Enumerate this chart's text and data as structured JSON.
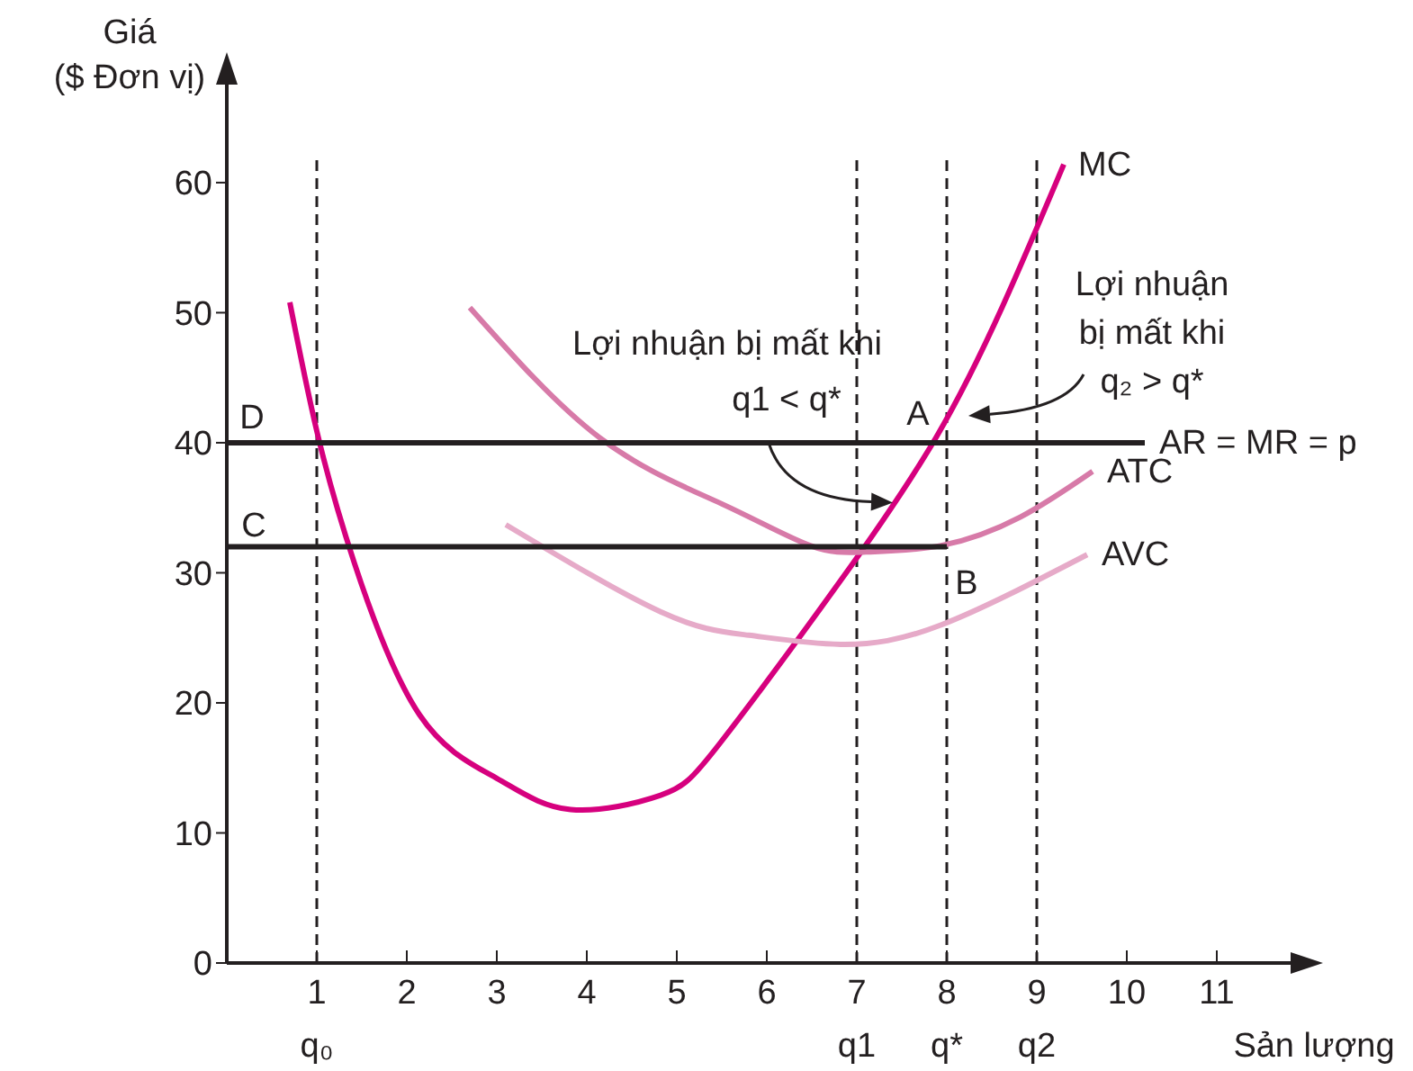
{
  "chart_data": {
    "type": "line",
    "ylabel": "Giá\n($ Đơn vị)",
    "xlabel": "Sản lượng",
    "xlim": [
      0,
      11.5
    ],
    "ylim": [
      0,
      62
    ],
    "xticks": [
      1,
      2,
      3,
      4,
      5,
      6,
      7,
      8,
      9,
      10,
      11
    ],
    "yticks": [
      0,
      10,
      20,
      30,
      40,
      50,
      60
    ],
    "grid": false,
    "marker": "none",
    "series": [
      {
        "name": "MC",
        "color": "#d6007e",
        "x": [
          0.7,
          1,
          1.42,
          2.14,
          3,
          3.82,
          4.82,
          5.48,
          6.82,
          7.88,
          8.62,
          9.3
        ],
        "values": [
          50.8,
          40.9,
          30.7,
          19.1,
          14.2,
          11.8,
          12.9,
          16.9,
          29.4,
          40.4,
          50.5,
          61.4
        ]
      },
      {
        "name": "ATC",
        "color": "#d77aa8",
        "x": [
          2.7,
          4.14,
          5.5,
          6.48,
          7.1,
          7.94,
          8.82,
          9.62
        ],
        "values": [
          50.4,
          40.4,
          35.3,
          32.1,
          31.6,
          32.1,
          34.3,
          37.8
        ]
      },
      {
        "name": "AVC",
        "color": "#e6aac8",
        "x": [
          3.1,
          4.82,
          5.8,
          6.82,
          7.94,
          9.56
        ],
        "values": [
          33.7,
          27.0,
          25.2,
          24.5,
          26.0,
          31.4
        ]
      },
      {
        "name": "AR = MR = p",
        "color": "#231f20",
        "x": [
          0,
          10.2
        ],
        "values": [
          40,
          40
        ]
      },
      {
        "color": "#231f20",
        "x": [
          0,
          8
        ],
        "values": [
          32,
          32
        ]
      }
    ],
    "ref_lines": [
      {
        "axis": "x",
        "value": 1,
        "label": "q₀",
        "color": "#231f20",
        "line_style": "dashed"
      },
      {
        "axis": "x",
        "value": 7,
        "label": "q1",
        "color": "#231f20",
        "line_style": "dashed"
      },
      {
        "axis": "x",
        "value": 8,
        "label": "q*",
        "color": "#231f20",
        "line_style": "dashed"
      },
      {
        "axis": "x",
        "value": 9,
        "label": "q2",
        "color": "#231f20",
        "line_style": "dashed"
      }
    ],
    "annotations": [
      "D",
      "C",
      "A",
      "B",
      "Lợi nhuận bị mất khi",
      {
        "text": "q1 < q*",
        "x": 7.4,
        "y": 35.4
      },
      "Lợi nhuận\nbị mất khi\nq₂ > q*"
    ]
  }
}
